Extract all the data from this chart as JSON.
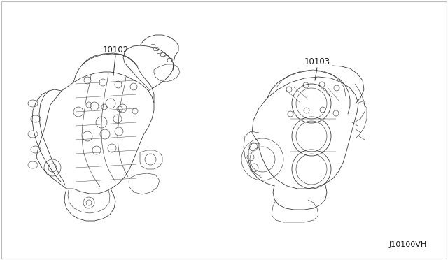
{
  "background_color": "#ffffff",
  "label_1": "10102",
  "label_2": "10103",
  "diagram_code": "J10100VH",
  "text_color": "#1a1a1a",
  "line_color": "#2a2a2a",
  "fig_width": 6.4,
  "fig_height": 3.72,
  "dpi": 100
}
